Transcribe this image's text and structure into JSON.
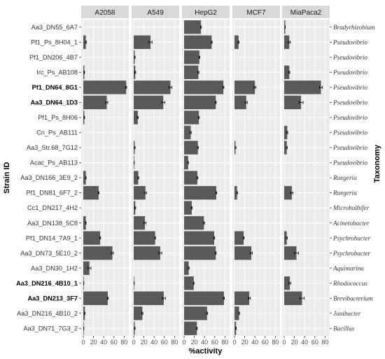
{
  "chart_data": {
    "type": "bar",
    "orientation": "horizontal",
    "xlabel": "%activity",
    "ylabel": "Strain ID",
    "right_axis_title": "Taxonomy",
    "xlim": [
      0,
      85
    ],
    "x_ticks": [
      0,
      20,
      40,
      60,
      80
    ],
    "x_tick_labels": [
      "0",
      "20",
      "40",
      "60",
      "80"
    ],
    "bar_color": "#595959",
    "panel_background": "#ebebeb",
    "grid_color": "#ffffff",
    "strip_background": "#d9d9d9",
    "panels": [
      "A2058",
      "A549",
      "HepG2",
      "MCF7",
      "MiaPaca2"
    ],
    "strains": [
      {
        "id": "Aa3_DN55_6A7",
        "bold": false
      },
      {
        "id": "Pf1_Ps_8H04_1",
        "bold": false
      },
      {
        "id": "Pf1_DN206_4B7",
        "bold": false
      },
      {
        "id": "Irc_Ps_AB108",
        "bold": false
      },
      {
        "id": "Pf1_DN64_8G1",
        "bold": true
      },
      {
        "id": "Aa3_DN64_1D3",
        "bold": true
      },
      {
        "id": "Pf1_Ps_8H06",
        "bold": false
      },
      {
        "id": "Cn_Ps_AB111",
        "bold": false
      },
      {
        "id": "Aa3_Str.68_7G12",
        "bold": false
      },
      {
        "id": "Acac_Ps_AB113",
        "bold": false
      },
      {
        "id": "Aa3_DN166_3E9_2",
        "bold": false
      },
      {
        "id": "Pf1_DN81_6F7_2",
        "bold": false
      },
      {
        "id": "Cc1_DN217_4H2",
        "bold": false
      },
      {
        "id": "Aa3_DN138_5C8",
        "bold": false
      },
      {
        "id": "Pf1_DN14_7A9_1",
        "bold": false
      },
      {
        "id": "Aa3_DN73_5E10_2",
        "bold": false
      },
      {
        "id": "Aa3_DN30_1H2",
        "bold": false
      },
      {
        "id": "Aa3_DN216_4B10_1",
        "bold": true
      },
      {
        "id": "Aa3_DN213_3F7",
        "bold": true
      },
      {
        "id": "Aa3_DN216_4B10_2",
        "bold": false
      },
      {
        "id": "Aa3_DN71_7G3_2",
        "bold": false
      }
    ],
    "taxonomy": [
      "Bradyrhizobium",
      "Pseudovibrio",
      "Pseudovibrio",
      "Pseudovibrio",
      "Pseudovibrio",
      "Pseudovibrio",
      "Pseudovibrio",
      "Pseudovibrio",
      "Pseudovibrio",
      "Pseudovibrio",
      "Ruegeria",
      "Ruegeria",
      "Microbulbifer",
      "Acinetobacter",
      "Psychrobacter",
      "Psychrobacter",
      "Aquimarina",
      "Rhodococcus",
      "Brevibacterium",
      "Janibacter",
      "Bacillus"
    ],
    "series": [
      {
        "name": "A2058",
        "values": [
          0,
          5,
          0,
          2,
          84,
          46,
          2,
          0,
          0,
          0,
          5,
          30,
          0,
          5,
          33,
          57,
          12,
          1,
          48,
          3,
          1
        ],
        "errors": [
          0,
          1,
          0,
          0.5,
          1,
          2,
          0.5,
          0,
          0,
          0,
          0.5,
          1,
          0,
          0.5,
          1,
          2,
          3,
          0,
          1,
          0.5,
          0
        ]
      },
      {
        "name": "A549",
        "values": [
          0,
          33,
          2,
          3,
          72,
          58,
          8,
          0,
          2,
          1,
          9,
          23,
          3,
          22,
          42,
          52,
          0,
          1,
          59,
          17,
          2
        ],
        "errors": [
          0,
          3,
          1,
          1,
          3,
          3,
          1,
          0,
          1,
          0,
          1,
          2,
          1,
          2,
          1,
          3,
          0,
          0,
          3,
          1,
          1
        ]
      },
      {
        "name": "HepG2",
        "values": [
          33,
          54,
          30,
          28,
          77,
          62,
          29,
          13,
          27,
          8,
          26,
          63,
          15,
          39,
          59,
          62,
          9,
          19,
          78,
          45,
          25
        ],
        "errors": [
          1,
          1,
          1,
          1,
          1,
          1,
          1,
          1,
          1,
          0.5,
          1,
          1,
          1,
          1,
          1,
          1,
          1,
          0.5,
          1,
          1,
          1
        ]
      },
      {
        "name": "MCF7",
        "values": [
          0,
          8,
          0,
          0,
          40,
          23,
          0,
          0,
          2,
          0,
          0,
          5,
          0,
          0,
          18,
          33,
          0,
          0,
          29,
          9,
          3
        ],
        "errors": [
          0,
          1,
          0,
          0,
          2,
          2,
          0,
          0,
          1,
          0,
          0,
          1,
          0,
          0,
          1,
          2,
          0,
          0,
          2,
          1,
          0.5
        ]
      },
      {
        "name": "MiaPaca2",
        "values": [
          2,
          10,
          0,
          10,
          72,
          33,
          0,
          6,
          5,
          0,
          0,
          15,
          0,
          0,
          5,
          24,
          0,
          11,
          35,
          0,
          0
        ],
        "errors": [
          0,
          2,
          0,
          1,
          3,
          4,
          0,
          1,
          1,
          0,
          0,
          2,
          0,
          0,
          1,
          4,
          0,
          2,
          4,
          0,
          0
        ]
      }
    ]
  }
}
